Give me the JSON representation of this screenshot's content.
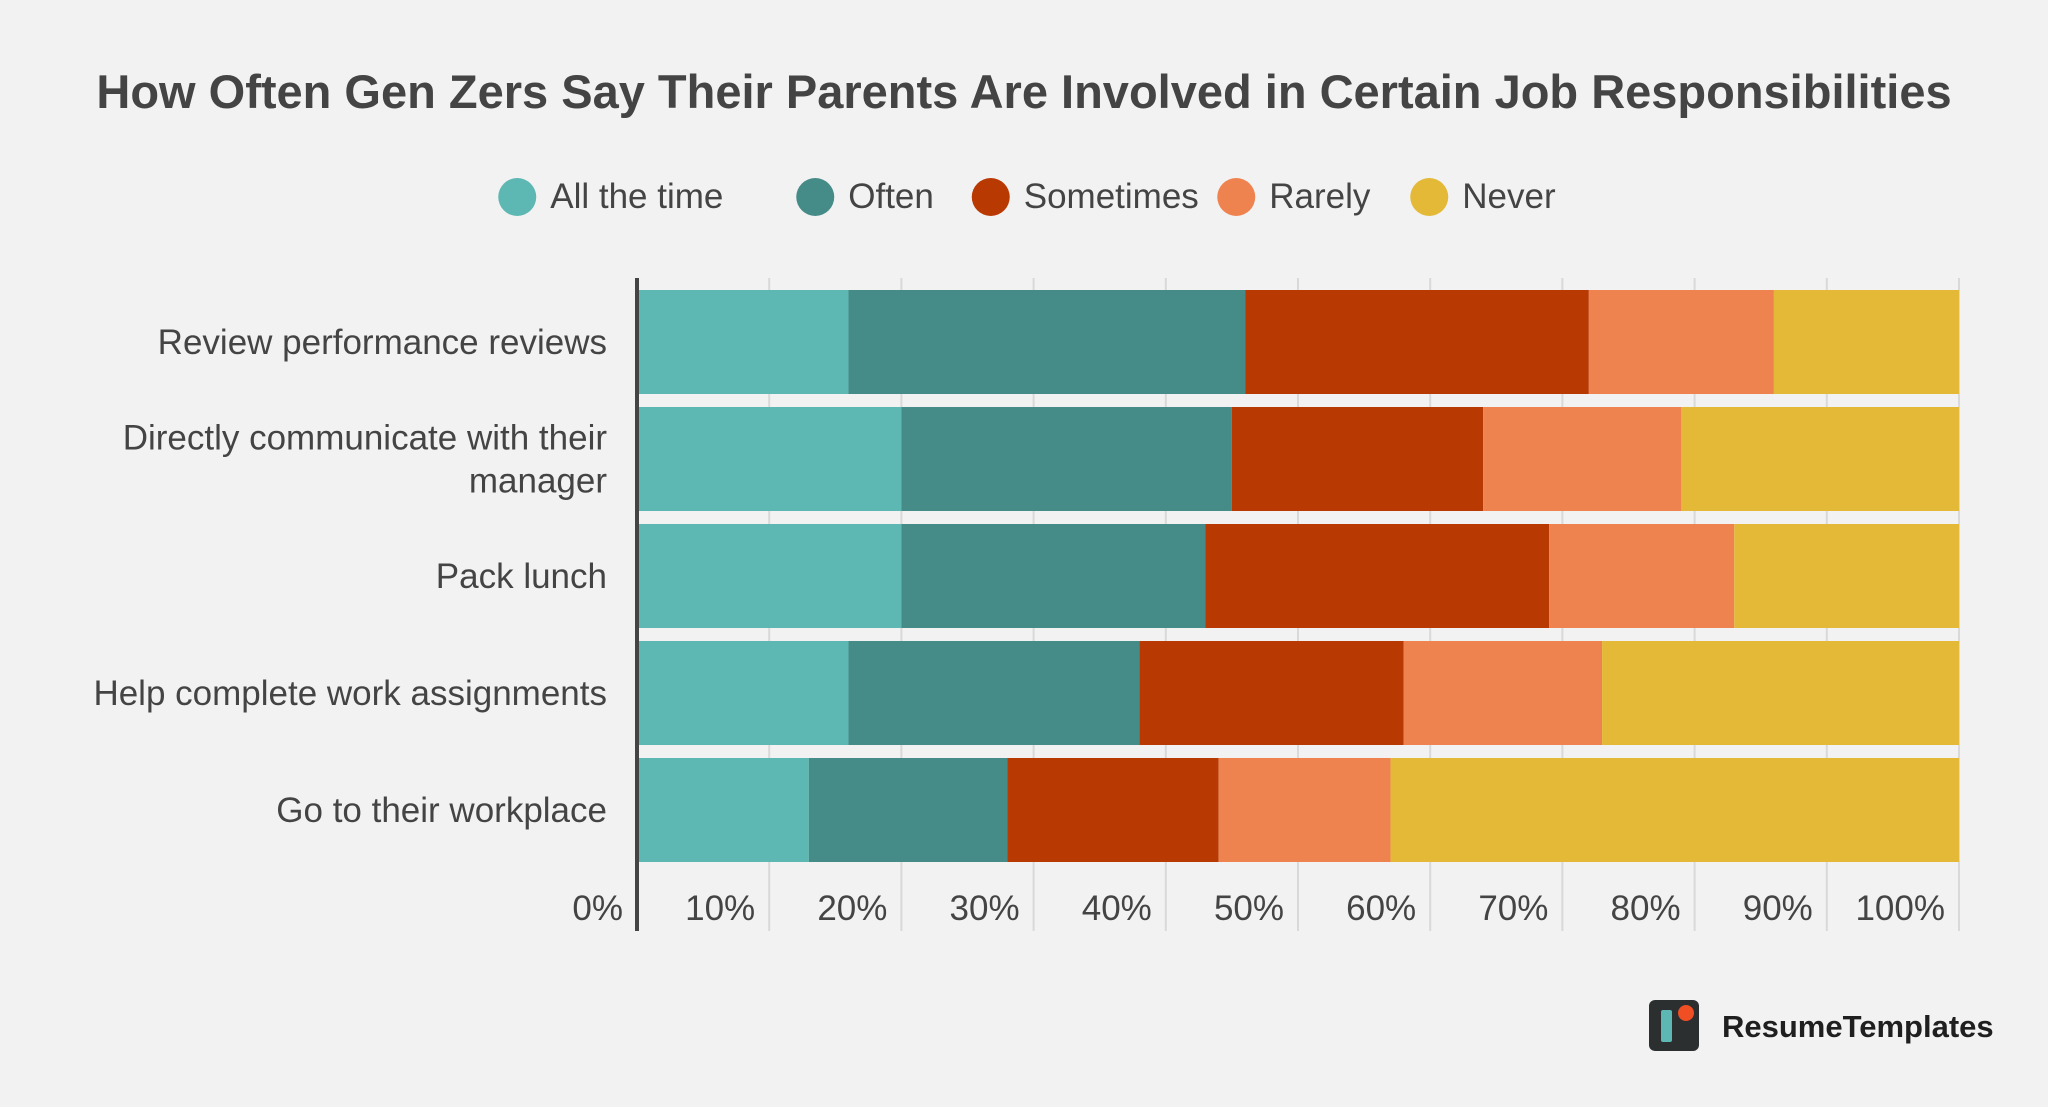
{
  "chart_data": {
    "type": "bar",
    "orientation": "horizontal",
    "stacked": true,
    "title": "How Often Gen Zers Say Their Parents Are Involved in Certain Job Responsibilities",
    "categories": [
      [
        "Review performance reviews"
      ],
      [
        "Directly communicate with their",
        "manager"
      ],
      [
        "Pack lunch"
      ],
      [
        "Help complete work assignments"
      ],
      [
        "Go to their workplace"
      ]
    ],
    "series": [
      {
        "name": "All the time",
        "color": "#5db7b2",
        "values": [
          16,
          20,
          20,
          16,
          13
        ]
      },
      {
        "name": "Often",
        "color": "#458b87",
        "values": [
          30,
          25,
          23,
          22,
          15
        ]
      },
      {
        "name": "Sometimes",
        "color": "#b93903",
        "values": [
          26,
          19,
          26,
          20,
          16
        ]
      },
      {
        "name": "Rarely",
        "color": "#ef8350",
        "values": [
          14,
          15,
          14,
          15,
          13
        ]
      },
      {
        "name": "Never",
        "color": "#e4b938",
        "values": [
          14,
          21,
          17,
          27,
          43
        ]
      }
    ],
    "xlim": [
      0,
      100
    ],
    "xticks": [
      "0%",
      "10%",
      "20%",
      "30%",
      "40%",
      "50%",
      "60%",
      "70%",
      "80%",
      "90%",
      "100%"
    ],
    "grid": true,
    "legend_position": "top"
  },
  "branding": {
    "logo_text": "ResumeTemplates"
  },
  "colors": {
    "background": "#f2f2f2",
    "text": "#444444",
    "grid": "#d9d9d9"
  }
}
